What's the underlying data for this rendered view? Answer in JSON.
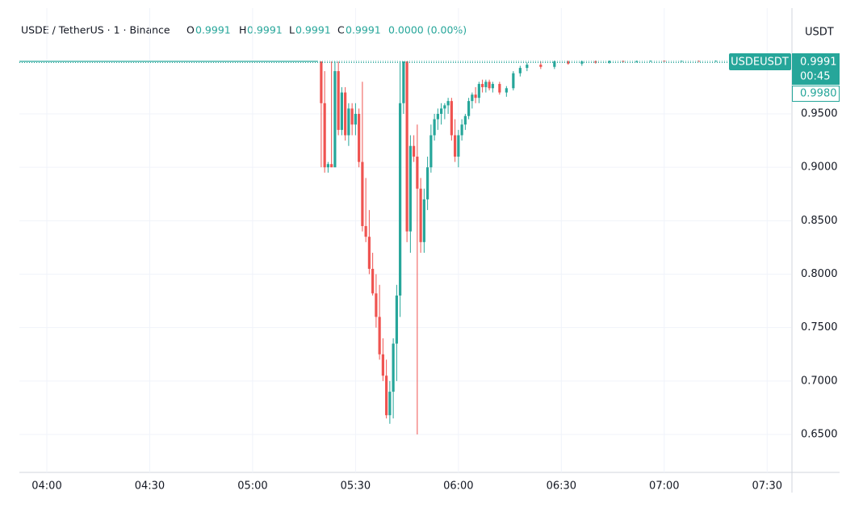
{
  "header": {
    "symbol": "USDE / TetherUS · 1 · Binance",
    "o_label": "O",
    "o": "0.9991",
    "h_label": "H",
    "h": "0.9991",
    "l_label": "L",
    "l": "0.9991",
    "c_label": "C",
    "c": "0.9991",
    "change": "0.0000 (0.00%)",
    "currency": "USDT",
    "ticker_tag": "USDEUSDT",
    "countdown": "00:45"
  },
  "chart_data": {
    "type": "candlestick",
    "up_color": "#26a69a",
    "down_color": "#ef5350",
    "grid": true,
    "xlim": [
      "03:52",
      "07:37"
    ],
    "xticks": [
      "04:00",
      "04:30",
      "05:00",
      "05:30",
      "06:00",
      "06:30",
      "07:00",
      "07:30"
    ],
    "ylim": [
      0.6145,
      1.049
    ],
    "yticks": [
      {
        "value": 0.65,
        "label": "0.6500"
      },
      {
        "value": 0.7,
        "label": "0.7000"
      },
      {
        "value": 0.75,
        "label": "0.7500"
      },
      {
        "value": 0.8,
        "label": "0.8000"
      },
      {
        "value": 0.85,
        "label": "0.8500"
      },
      {
        "value": 0.9,
        "label": "0.9000"
      },
      {
        "value": 0.95,
        "label": "0.9500"
      }
    ],
    "flat": {
      "x": [
        "03:52",
        "05:19"
      ],
      "values": [
        0.9991,
        0.9991
      ]
    },
    "price_lines": [
      {
        "value": 0.9991,
        "label": "0.9991"
      },
      {
        "value": 0.998,
        "label": "0.9980"
      }
    ],
    "x": [
      "05:20",
      "05:21",
      "05:22",
      "05:23",
      "05:24",
      "05:25",
      "05:26",
      "05:27",
      "05:28",
      "05:29",
      "05:30",
      "05:31",
      "05:32",
      "05:33",
      "05:34",
      "05:35",
      "05:36",
      "05:37",
      "05:38",
      "05:39",
      "05:40",
      "05:41",
      "05:42",
      "05:43",
      "05:44",
      "05:45",
      "05:46",
      "05:47",
      "05:48",
      "05:49",
      "05:50",
      "05:51",
      "05:52",
      "05:53",
      "05:54",
      "05:55",
      "05:56",
      "05:57",
      "05:58",
      "05:59",
      "06:00",
      "06:01",
      "06:02",
      "06:03",
      "06:04",
      "06:05",
      "06:06",
      "06:07",
      "06:08",
      "06:09",
      "06:10",
      "06:12",
      "06:14",
      "06:16",
      "06:18",
      "06:20",
      "06:24",
      "06:28",
      "06:32",
      "06:36",
      "06:40",
      "06:44",
      "06:48",
      "06:52",
      "06:56",
      "07:00",
      "07:05",
      "07:10",
      "07:15",
      "07:20"
    ],
    "open": [
      0.999,
      0.96,
      0.9,
      0.903,
      0.9,
      0.99,
      0.935,
      0.97,
      0.93,
      0.955,
      0.94,
      0.95,
      0.905,
      0.845,
      0.835,
      0.805,
      0.782,
      0.76,
      0.725,
      0.705,
      0.668,
      0.69,
      0.735,
      0.78,
      0.96,
      0.999,
      0.84,
      0.92,
      0.91,
      0.88,
      0.83,
      0.87,
      0.9,
      0.93,
      0.945,
      0.95,
      0.955,
      0.958,
      0.962,
      0.93,
      0.91,
      0.93,
      0.94,
      0.948,
      0.962,
      0.968,
      0.965,
      0.978,
      0.975,
      0.98,
      0.974,
      0.978,
      0.97,
      0.974,
      0.988,
      0.993,
      0.996,
      0.994,
      0.999,
      0.997,
      0.999,
      0.998,
      0.9995,
      0.999,
      0.9993,
      0.9996,
      0.9992,
      0.9995,
      0.9993,
      0.9996
    ],
    "high": [
      0.999,
      0.99,
      0.905,
      0.999,
      0.999,
      0.999,
      0.975,
      0.975,
      0.96,
      0.96,
      0.96,
      0.955,
      0.98,
      0.89,
      0.86,
      0.82,
      0.8,
      0.79,
      0.74,
      0.72,
      0.7,
      0.74,
      0.79,
      0.999,
      0.999,
      0.999,
      0.93,
      0.93,
      0.94,
      0.89,
      0.88,
      0.91,
      0.94,
      0.95,
      0.955,
      0.96,
      0.96,
      0.965,
      0.965,
      0.945,
      0.935,
      0.945,
      0.95,
      0.965,
      0.97,
      0.975,
      0.98,
      0.982,
      0.982,
      0.982,
      0.98,
      0.98,
      0.976,
      0.99,
      0.995,
      0.998,
      0.999,
      1.0,
      1.0,
      1.0,
      1.0,
      1.0,
      1.0,
      1.0,
      1.0,
      1.0,
      1.0,
      1.0,
      1.0,
      1.0
    ],
    "low": [
      0.9,
      0.895,
      0.895,
      0.9,
      0.9,
      0.93,
      0.93,
      0.925,
      0.92,
      0.93,
      0.93,
      0.9,
      0.84,
      0.83,
      0.8,
      0.78,
      0.75,
      0.72,
      0.7,
      0.665,
      0.66,
      0.665,
      0.7,
      0.76,
      0.95,
      0.83,
      0.82,
      0.905,
      0.65,
      0.82,
      0.82,
      0.86,
      0.895,
      0.925,
      0.935,
      0.94,
      0.945,
      0.95,
      0.925,
      0.905,
      0.9,
      0.925,
      0.935,
      0.945,
      0.955,
      0.96,
      0.96,
      0.97,
      0.97,
      0.972,
      0.97,
      0.968,
      0.966,
      0.972,
      0.985,
      0.99,
      0.992,
      0.992,
      0.996,
      0.995,
      0.997,
      0.997,
      0.998,
      0.998,
      0.999,
      0.999,
      0.999,
      0.999,
      0.999,
      0.999
    ],
    "close": [
      0.96,
      0.9,
      0.903,
      0.9,
      0.99,
      0.935,
      0.97,
      0.93,
      0.955,
      0.94,
      0.95,
      0.905,
      0.845,
      0.835,
      0.805,
      0.782,
      0.76,
      0.725,
      0.705,
      0.668,
      0.69,
      0.735,
      0.78,
      0.96,
      0.999,
      0.84,
      0.92,
      0.91,
      0.88,
      0.83,
      0.87,
      0.9,
      0.93,
      0.945,
      0.95,
      0.955,
      0.958,
      0.962,
      0.93,
      0.91,
      0.93,
      0.94,
      0.948,
      0.962,
      0.968,
      0.965,
      0.978,
      0.975,
      0.98,
      0.974,
      0.978,
      0.97,
      0.974,
      0.988,
      0.993,
      0.996,
      0.994,
      0.999,
      0.997,
      0.999,
      0.998,
      0.9995,
      0.999,
      0.9993,
      0.9996,
      0.9992,
      0.9995,
      0.9993,
      0.9996,
      0.9991
    ]
  }
}
